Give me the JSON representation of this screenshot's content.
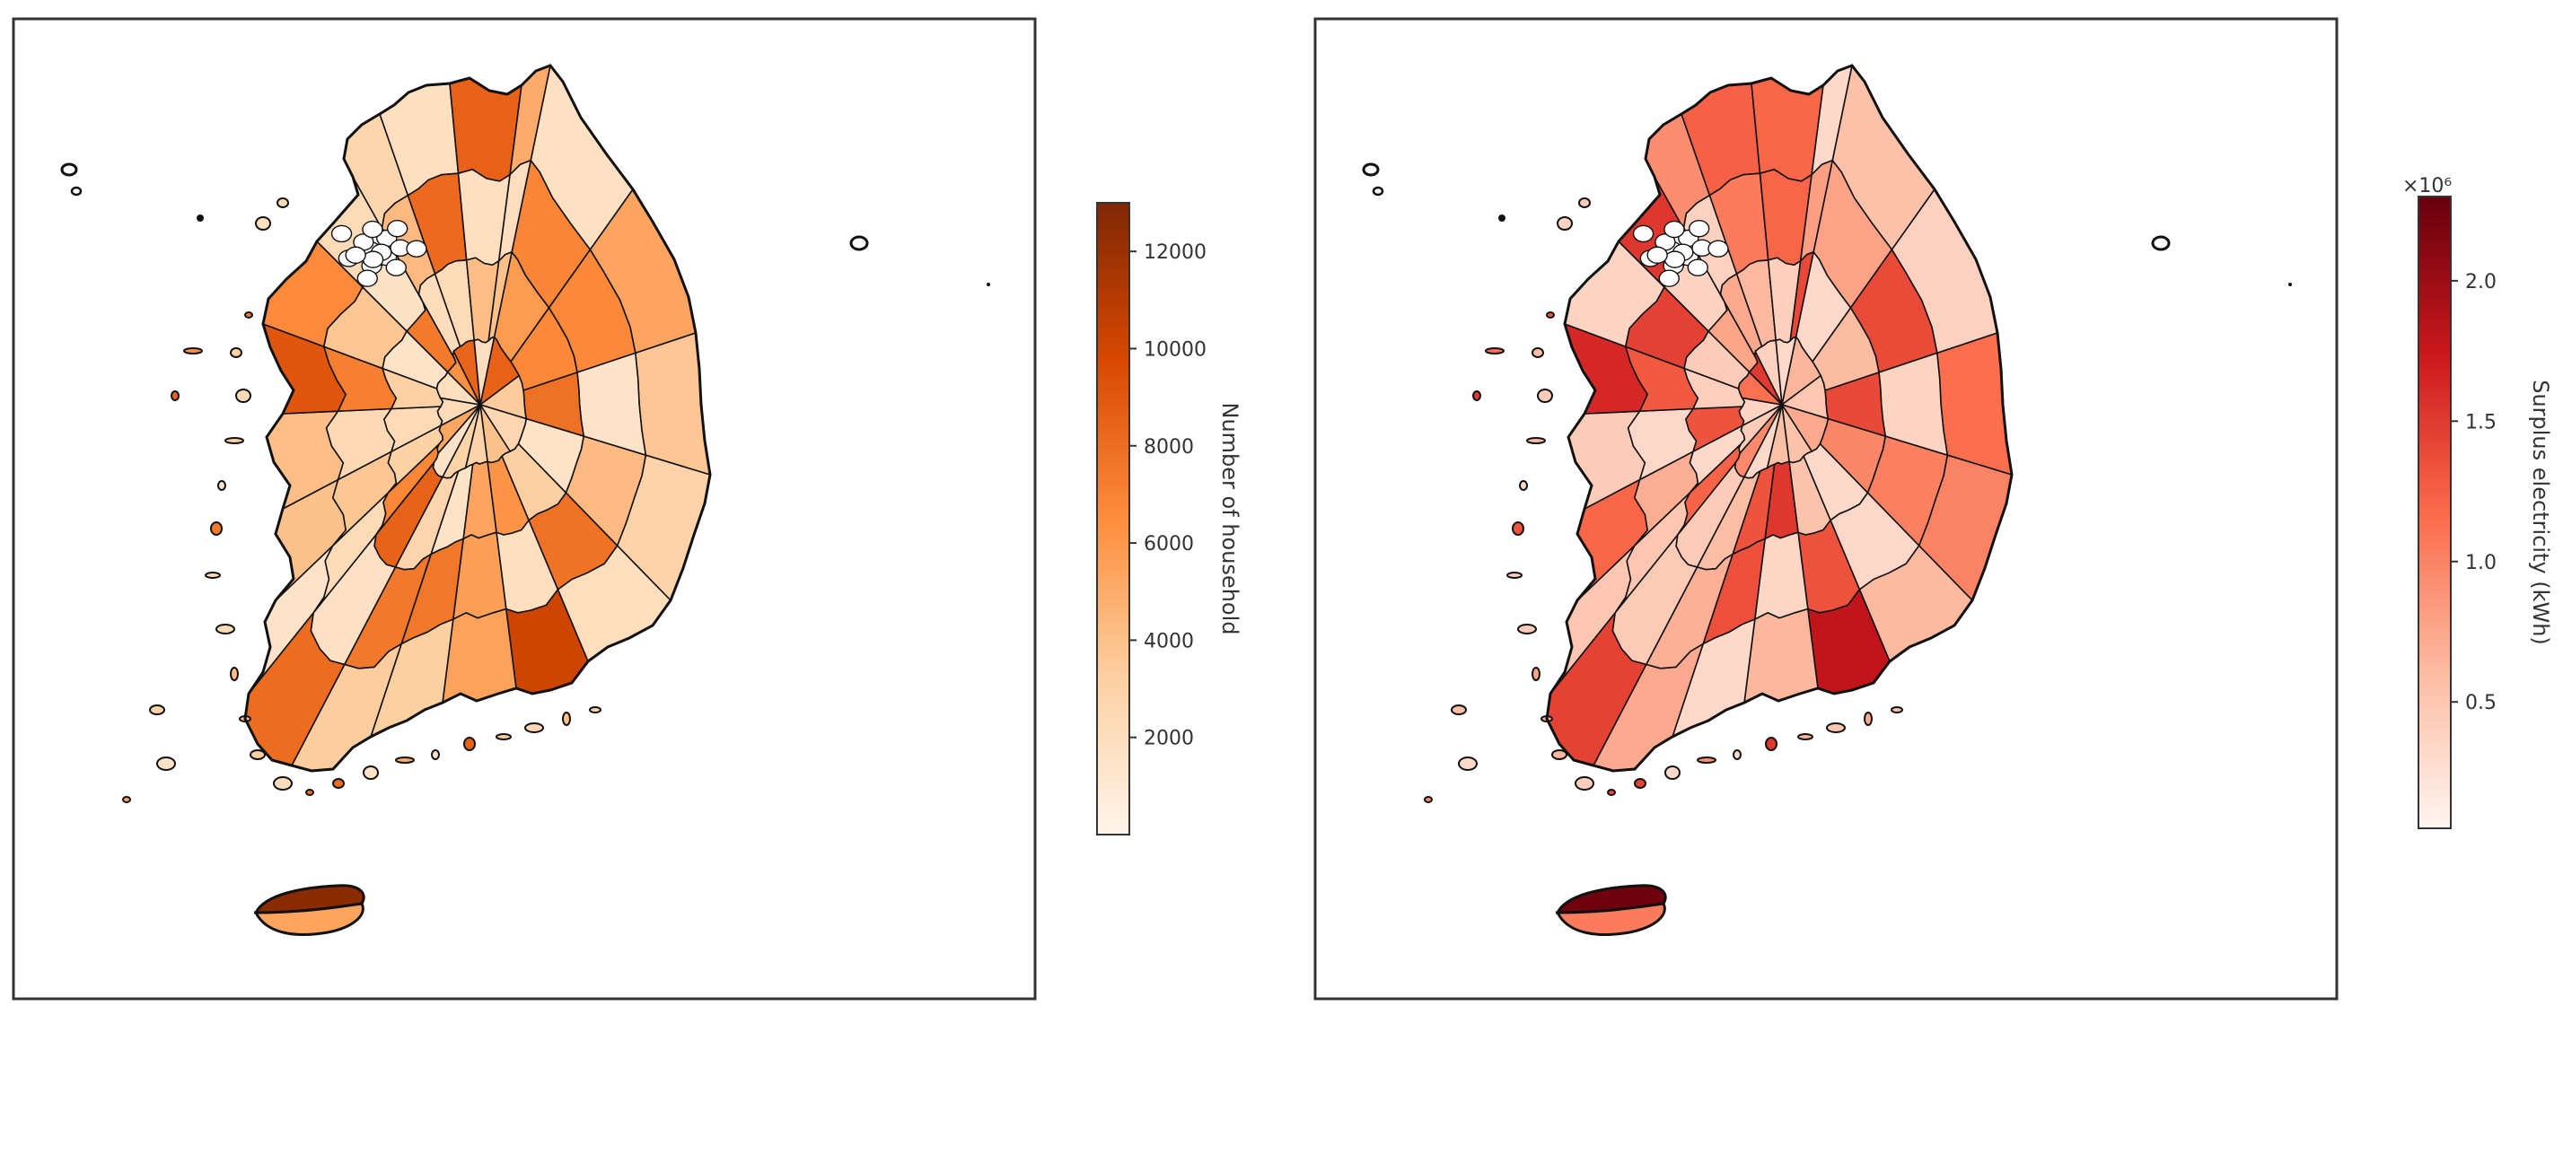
{
  "maps": [
    {
      "id": "household",
      "colorbar": {
        "label": "Number of household",
        "ticks": [
          "2000",
          "4000",
          "6000",
          "8000",
          "10000",
          "12000"
        ],
        "tick_values": [
          2000,
          4000,
          6000,
          8000,
          10000,
          12000
        ],
        "range": [
          0,
          13000
        ],
        "offset_text": "",
        "colors": [
          "#fff5eb",
          "#fdd0a2",
          "#fd8d3c",
          "#d94801",
          "#7f2704"
        ]
      },
      "jeju_values": [
        12600,
        5400
      ]
    },
    {
      "id": "surplus",
      "colorbar": {
        "label": "Surplus electricity (kWh)",
        "ticks": [
          "0.5",
          "1.0",
          "1.5",
          "2.0"
        ],
        "tick_values": [
          0.5,
          1.0,
          1.5,
          2.0
        ],
        "range": [
          0.05,
          2.3
        ],
        "offset_text": "×10⁶",
        "colors": [
          "#fff5f0",
          "#fcbba1",
          "#fb6a4a",
          "#cb181d",
          "#67000d"
        ]
      },
      "jeju_values": [
        2.25,
        1.05
      ]
    }
  ]
}
